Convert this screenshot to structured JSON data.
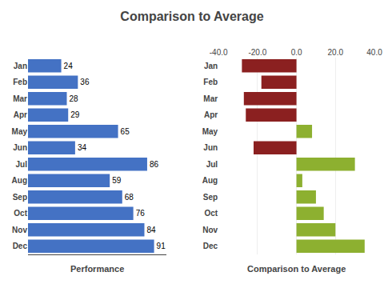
{
  "title": "Comparison to Average",
  "chart_data": [
    {
      "type": "bar",
      "orientation": "horizontal",
      "categories": [
        "Jan",
        "Feb",
        "Mar",
        "Apr",
        "May",
        "Jun",
        "Jul",
        "Aug",
        "Sep",
        "Oct",
        "Nov",
        "Dec"
      ],
      "series": [
        {
          "name": "Performance",
          "color": "#4472C4",
          "values": [
            24,
            36,
            28,
            29,
            65,
            34,
            86,
            59,
            68,
            76,
            84,
            91
          ]
        }
      ],
      "xlim": [
        0,
        100
      ],
      "data_labels": true,
      "tick_labels": "y",
      "grid": false,
      "legend": "bottom"
    },
    {
      "type": "bar",
      "orientation": "horizontal",
      "categories": [
        "Jan",
        "Feb",
        "Mar",
        "Apr",
        "May",
        "Jun",
        "Jul",
        "Aug",
        "Sep",
        "Oct",
        "Nov",
        "Dec"
      ],
      "series": [
        {
          "name": "Comparison to Average",
          "colors": [
            "#8B2020",
            "#8B2020",
            "#8B2020",
            "#8B2020",
            "#8DB030",
            "#8B2020",
            "#8DB030",
            "#8DB030",
            "#8DB030",
            "#8DB030",
            "#8DB030",
            "#8DB030"
          ],
          "values": [
            -28,
            -18,
            -27,
            -26,
            8,
            -22,
            30,
            3,
            10,
            14,
            20,
            35
          ]
        }
      ],
      "xlim": [
        -40,
        40
      ],
      "xticks": [
        {
          "value": -40,
          "label": "-40.0"
        },
        {
          "value": -20,
          "label": "-20.0"
        },
        {
          "value": 0,
          "label": "0.0"
        },
        {
          "value": 20,
          "label": "20.0"
        },
        {
          "value": 40,
          "label": "40.0"
        }
      ],
      "grid": true,
      "legend": "bottom"
    }
  ]
}
